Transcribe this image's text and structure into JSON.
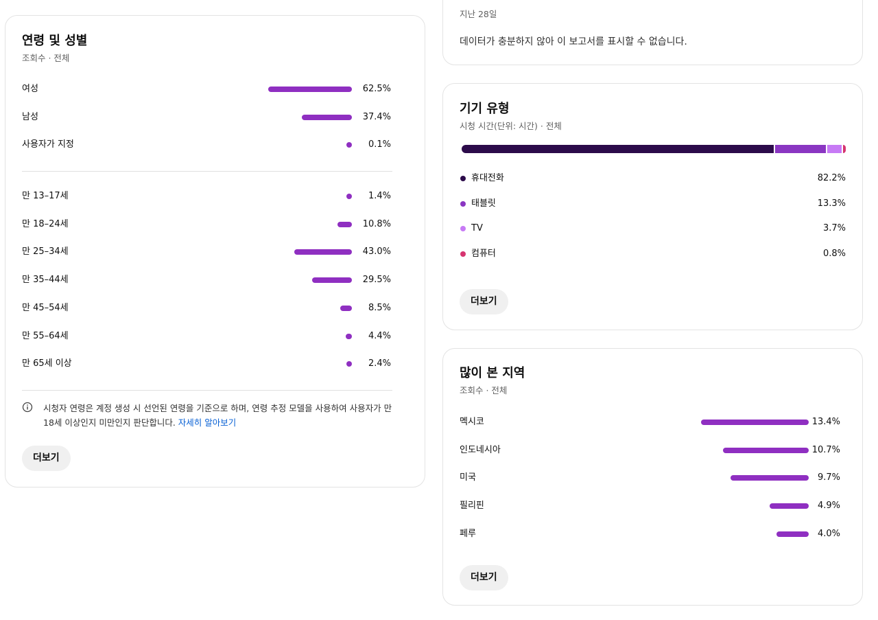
{
  "age_gender": {
    "title": "연령 및 성별",
    "subtitle": "조회수 · 전체",
    "color": "#8f2fc1",
    "gender": [
      {
        "label": "여성",
        "value": 62.5,
        "value_label": "62.5%"
      },
      {
        "label": "남성",
        "value": 37.4,
        "value_label": "37.4%"
      },
      {
        "label": "사용자가 지정",
        "value": 0.1,
        "value_label": "0.1%"
      }
    ],
    "age": [
      {
        "label": "만 13–17세",
        "value": 1.4,
        "value_label": "1.4%"
      },
      {
        "label": "만 18–24세",
        "value": 10.8,
        "value_label": "10.8%"
      },
      {
        "label": "만 25–34세",
        "value": 43.0,
        "value_label": "43.0%"
      },
      {
        "label": "만 35–44세",
        "value": 29.5,
        "value_label": "29.5%"
      },
      {
        "label": "만 45–54세",
        "value": 8.5,
        "value_label": "8.5%"
      },
      {
        "label": "만 55–64세",
        "value": 4.4,
        "value_label": "4.4%"
      },
      {
        "label": "만 65세 이상",
        "value": 2.4,
        "value_label": "2.4%"
      }
    ],
    "note": "시청자 연령은 계정 생성 시 선언된 연령을 기준으로 하며, 연령 추정 모델을 사용하여 사용자가 만 18세 이상인지 미만인지 판단합니다.",
    "note_link": "자세히 알아보기",
    "more": "더보기"
  },
  "summary_card": {
    "subtitle": "지난 28일",
    "message": "데이터가 충분하지 않아 이 보고서를 표시할 수 없습니다."
  },
  "device": {
    "title": "기기 유형",
    "subtitle": "시청 시간(단위: 시간) · 전체",
    "items": [
      {
        "label": "휴대전화",
        "value": 82.2,
        "value_label": "82.2%",
        "color": "#2c0b4a"
      },
      {
        "label": "태블릿",
        "value": 13.3,
        "value_label": "13.3%",
        "color": "#8a36c2"
      },
      {
        "label": "TV",
        "value": 3.7,
        "value_label": "3.7%",
        "color": "#c77af5"
      },
      {
        "label": "컴퓨터",
        "value": 0.8,
        "value_label": "0.8%",
        "color": "#d63470"
      }
    ],
    "more": "더보기"
  },
  "geo": {
    "title": "많이 본 지역",
    "subtitle": "조회수 · 전체",
    "color": "#8f2fc1",
    "items": [
      {
        "label": "멕시코",
        "value": 13.4,
        "value_label": "13.4%"
      },
      {
        "label": "인도네시아",
        "value": 10.7,
        "value_label": "10.7%"
      },
      {
        "label": "미국",
        "value": 9.7,
        "value_label": "9.7%"
      },
      {
        "label": "필리핀",
        "value": 4.9,
        "value_label": "4.9%"
      },
      {
        "label": "페루",
        "value": 4.0,
        "value_label": "4.0%"
      }
    ],
    "more": "더보기"
  }
}
